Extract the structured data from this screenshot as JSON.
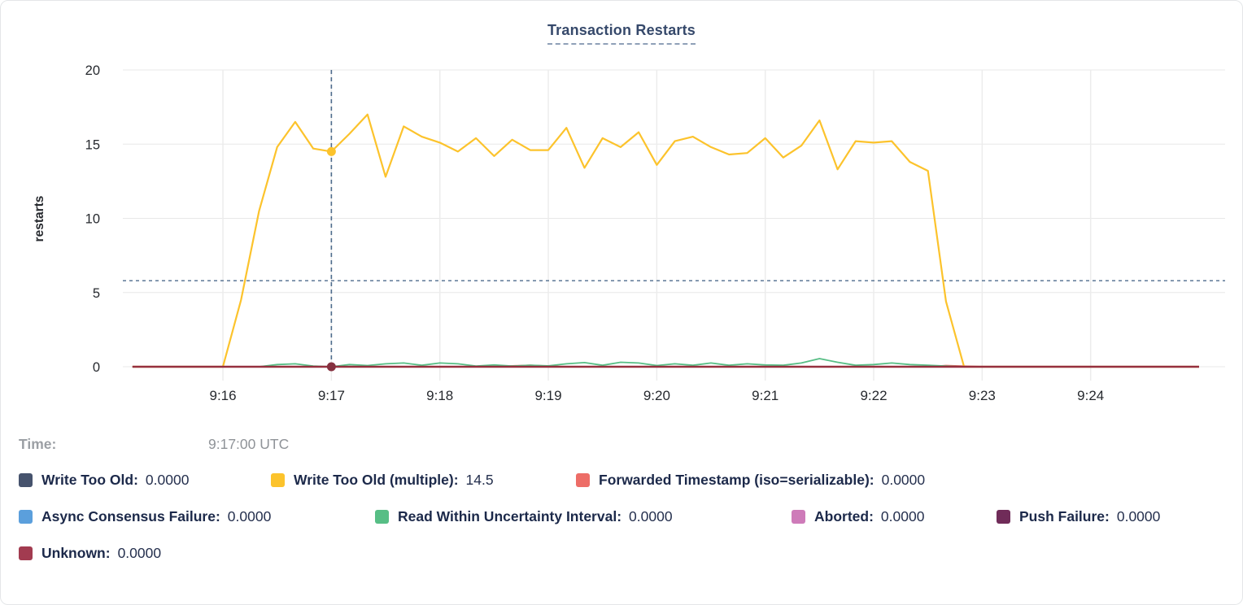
{
  "chart": {
    "title": "Transaction Restarts",
    "ylabel": "restarts"
  },
  "tooltip": {
    "time_label": "Time:",
    "time_value": "9:17:00 UTC",
    "rows": [
      [
        {
          "label": "Write Too Old:",
          "value": "0.0000",
          "color": "#46536D"
        },
        {
          "label": "Write Too Old (multiple):",
          "value": "14.5",
          "color": "#FCC32C"
        },
        {
          "label": "Forwarded Timestamp (iso=serializable):",
          "value": "0.0000",
          "color": "#ED6D67"
        }
      ],
      [
        {
          "label": "Async Consensus Failure:",
          "value": "0.0000",
          "color": "#5B9FDC"
        },
        {
          "label": "Read Within Uncertainty Interval:",
          "value": "0.0000",
          "color": "#57BE85"
        },
        {
          "label": "Aborted:",
          "value": "0.0000",
          "color": "#CE7BB9"
        },
        {
          "label": "Push Failure:",
          "value": "0.0000",
          "color": "#702C59"
        }
      ],
      [
        {
          "label": "Unknown:",
          "value": "0.0000",
          "color": "#A23B50"
        }
      ]
    ]
  },
  "chart_data": {
    "type": "line",
    "title": "Transaction Restarts",
    "ylabel": "restarts",
    "ylim": [
      0,
      20
    ],
    "y_ticks": [
      0,
      5,
      10,
      15,
      20
    ],
    "x_ticks": [
      {
        "label": "9:16",
        "t": 60
      },
      {
        "label": "9:17",
        "t": 120
      },
      {
        "label": "9:18",
        "t": 180
      },
      {
        "label": "9:19",
        "t": 240
      },
      {
        "label": "9:20",
        "t": 300
      },
      {
        "label": "9:21",
        "t": 360
      },
      {
        "label": "9:22",
        "t": 420
      },
      {
        "label": "9:23",
        "t": 480
      },
      {
        "label": "9:24",
        "t": 540
      }
    ],
    "x_time_base": "9:15:00",
    "t_start_seconds": 10,
    "t_step_seconds": 10,
    "grid": true,
    "legend_position": "bottom",
    "crosshair": {
      "time": "9:17:00 UTC",
      "t": 120,
      "hline_value": 5.8,
      "color": "#4E6B8C"
    },
    "dots": [
      {
        "series": "Write Too Old (multiple)",
        "t": 120,
        "value": 14.5,
        "color": "#FCC32C"
      },
      {
        "series": "Unknown",
        "t": 120,
        "value": 0,
        "color": "#85303F"
      }
    ],
    "series": [
      {
        "name": "Write Too Old",
        "color": "#46536D",
        "width": 1.5,
        "values": [
          0,
          0,
          0,
          0,
          0,
          0,
          0,
          0,
          0,
          0,
          0,
          0,
          0,
          0,
          0,
          0,
          0,
          0,
          0,
          0,
          0,
          0,
          0,
          0,
          0,
          0,
          0,
          0,
          0,
          0,
          0,
          0,
          0,
          0,
          0,
          0,
          0,
          0,
          0,
          0,
          0,
          0,
          0,
          0,
          0,
          0,
          0,
          0,
          0,
          0,
          0,
          0,
          0,
          0,
          0,
          0,
          0,
          0,
          0,
          0
        ]
      },
      {
        "name": "Async Consensus Failure",
        "color": "#5B9FDC",
        "width": 1.5,
        "values": [
          0,
          0,
          0,
          0,
          0,
          0,
          0,
          0,
          0,
          0,
          0,
          0,
          0,
          0,
          0,
          0,
          0,
          0,
          0,
          0,
          0,
          0,
          0,
          0,
          0,
          0,
          0,
          0,
          0,
          0,
          0,
          0,
          0,
          0,
          0,
          0,
          0,
          0,
          0,
          0,
          0,
          0,
          0,
          0,
          0,
          0,
          0,
          0,
          0,
          0,
          0,
          0,
          0,
          0,
          0,
          0,
          0,
          0,
          0,
          0
        ]
      },
      {
        "name": "Aborted",
        "color": "#CE7BB9",
        "width": 1.5,
        "values": [
          0,
          0,
          0,
          0,
          0,
          0,
          0,
          0,
          0,
          0,
          0,
          0,
          0,
          0,
          0,
          0,
          0,
          0,
          0,
          0,
          0,
          0,
          0,
          0,
          0,
          0,
          0,
          0,
          0,
          0,
          0,
          0,
          0,
          0,
          0,
          0,
          0,
          0,
          0,
          0,
          0,
          0,
          0,
          0,
          0,
          0,
          0,
          0,
          0,
          0,
          0,
          0,
          0,
          0,
          0,
          0,
          0,
          0,
          0,
          0
        ]
      },
      {
        "name": "Push Failure",
        "color": "#702C59",
        "width": 1.5,
        "values": [
          0,
          0,
          0,
          0,
          0,
          0,
          0,
          0,
          0,
          0,
          0,
          0,
          0,
          0,
          0,
          0,
          0,
          0,
          0,
          0,
          0,
          0,
          0,
          0,
          0,
          0,
          0,
          0,
          0,
          0,
          0,
          0,
          0,
          0,
          0,
          0,
          0,
          0,
          0,
          0,
          0,
          0,
          0,
          0,
          0,
          0,
          0,
          0,
          0,
          0,
          0,
          0,
          0,
          0,
          0,
          0,
          0,
          0,
          0,
          0
        ]
      },
      {
        "name": "Forwarded Timestamp (iso=serializable)",
        "color": "#ED6D67",
        "width": 1.8,
        "values": [
          0,
          0,
          0,
          0,
          0,
          0,
          0,
          0,
          0,
          0,
          0,
          0,
          0,
          0,
          0,
          0,
          0,
          0,
          0,
          0,
          0,
          0.06,
          0.1,
          0.04,
          0,
          0,
          0,
          0,
          0,
          0,
          0,
          0,
          0,
          0,
          0,
          0,
          0,
          0,
          0,
          0,
          0,
          0,
          0,
          0,
          0,
          0.08,
          0.04,
          0,
          0,
          0,
          0,
          0,
          0,
          0,
          0,
          0,
          0,
          0,
          0,
          0
        ]
      },
      {
        "name": "Read Within Uncertainty Interval",
        "color": "#57BE85",
        "width": 1.8,
        "values": [
          0,
          0,
          0,
          0,
          0,
          0,
          0,
          0,
          0.15,
          0.2,
          0.05,
          0,
          0.15,
          0.08,
          0.2,
          0.25,
          0.1,
          0.25,
          0.2,
          0.05,
          0.12,
          0.05,
          0.1,
          0.06,
          0.2,
          0.28,
          0.1,
          0.3,
          0.25,
          0.08,
          0.2,
          0.1,
          0.25,
          0.1,
          0.2,
          0.12,
          0.1,
          0.25,
          0.55,
          0.3,
          0.1,
          0.15,
          0.25,
          0.15,
          0.1,
          0.05,
          0,
          0,
          0,
          0,
          0,
          0,
          0,
          0,
          0,
          0,
          0,
          0,
          0,
          0
        ]
      },
      {
        "name": "Write Too Old (multiple)",
        "color": "#FCC32C",
        "width": 2.2,
        "values": [
          0,
          0,
          0,
          0,
          0,
          0,
          4.5,
          10.5,
          14.8,
          16.5,
          14.7,
          14.5,
          15.7,
          17,
          12.8,
          16.2,
          15.5,
          15.1,
          14.5,
          15.4,
          14.2,
          15.3,
          14.6,
          14.6,
          16.1,
          13.4,
          15.4,
          14.8,
          15.8,
          13.6,
          15.2,
          15.5,
          14.8,
          14.3,
          14.4,
          15.4,
          14.1,
          14.9,
          16.6,
          13.3,
          15.2,
          15.1,
          15.2,
          13.8,
          13.2,
          4.4,
          0,
          0,
          0,
          0,
          0,
          0,
          0,
          0,
          0,
          0,
          0,
          0,
          0,
          0
        ]
      },
      {
        "name": "Unknown",
        "color": "#96303F",
        "width": 2.6,
        "values": [
          0,
          0,
          0,
          0,
          0,
          0,
          0,
          0,
          0,
          0,
          0,
          0,
          0,
          0,
          0,
          0,
          0,
          0,
          0,
          0,
          0,
          0,
          0,
          0,
          0,
          0,
          0,
          0,
          0,
          0,
          0,
          0,
          0,
          0,
          0,
          0,
          0,
          0,
          0,
          0,
          0,
          0,
          0,
          0,
          0,
          0,
          0,
          0,
          0,
          0,
          0,
          0,
          0,
          0,
          0,
          0,
          0,
          0,
          0,
          0
        ]
      }
    ]
  }
}
